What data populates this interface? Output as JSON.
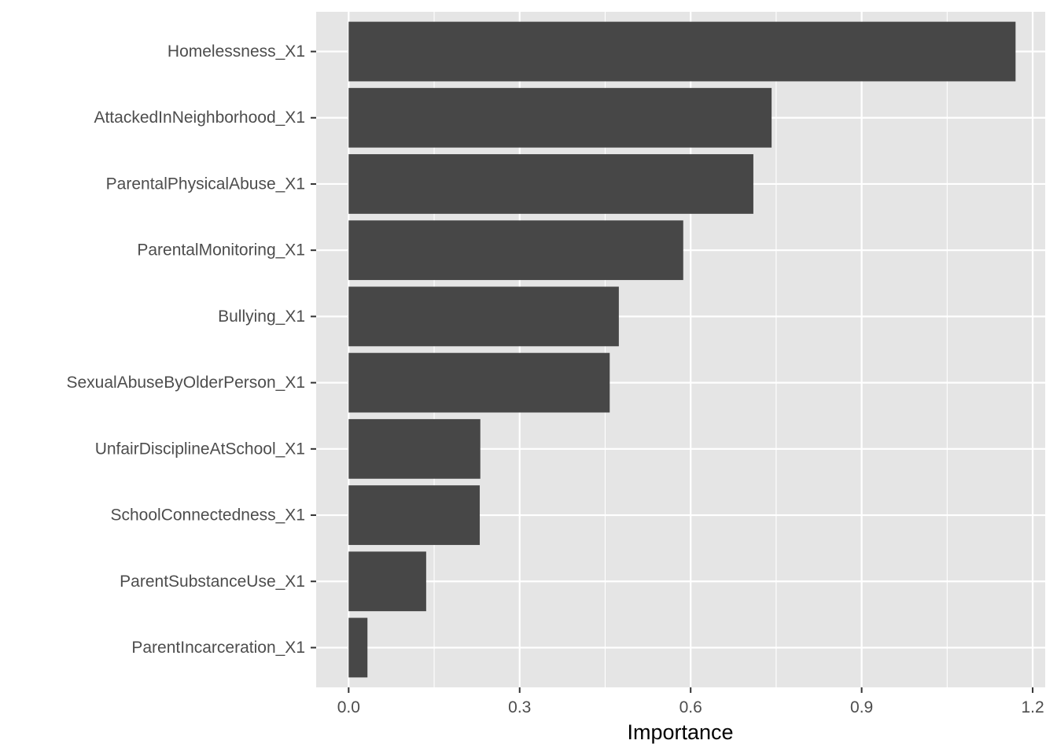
{
  "chart_data": {
    "type": "bar",
    "orientation": "horizontal",
    "xlabel": "Importance",
    "ylabel": "",
    "xlim": [
      -0.057,
      1.222
    ],
    "xticks": [
      0.0,
      0.3,
      0.6,
      0.9,
      1.2
    ],
    "xtick_labels": [
      "0.0",
      "0.3",
      "0.6",
      "0.9",
      "1.2"
    ],
    "grid": true,
    "categories": [
      "Homelessness_X1",
      "AttackedInNeighborhood_X1",
      "ParentalPhysicalAbuse_X1",
      "ParentalMonitoring_X1",
      "Bullying_X1",
      "SexualAbuseByOlderPerson_X1",
      "UnfairDisciplineAtSchool_X1",
      "SchoolConnectedness_X1",
      "ParentSubstanceUse_X1",
      "ParentIncarceration_X1"
    ],
    "values": [
      1.17,
      0.742,
      0.71,
      0.587,
      0.474,
      0.458,
      0.231,
      0.23,
      0.136,
      0.033
    ],
    "colors": {
      "bar": "#474747",
      "panel": "#e5e5e5",
      "grid": "#ffffff",
      "tick": "#4d4d4d",
      "title": "#000000"
    }
  }
}
